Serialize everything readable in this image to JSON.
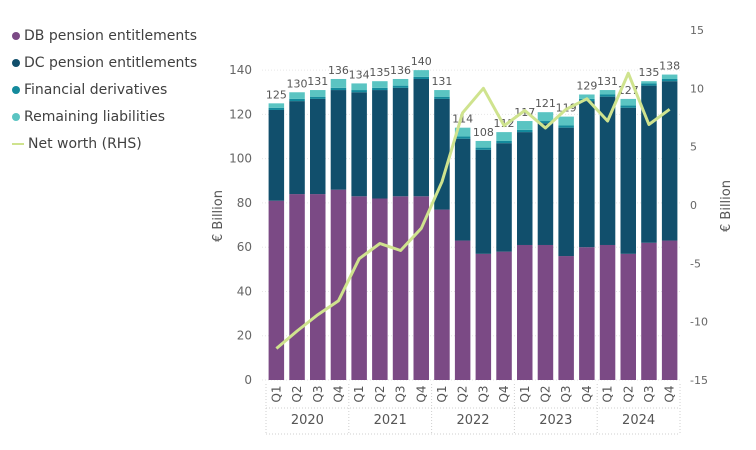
{
  "chart_data": {
    "type": "bar",
    "stacked": true,
    "title": "",
    "ylabel": "€ Billion",
    "y2label": "€ Billion",
    "ylim": [
      0,
      150
    ],
    "y2lim": [
      -15,
      15
    ],
    "yticks": [
      0,
      20,
      40,
      60,
      80,
      100,
      120,
      140
    ],
    "y2ticks": [
      -15,
      -10,
      -5,
      0,
      5,
      10,
      15
    ],
    "quarters": [
      "Q1",
      "Q2",
      "Q3",
      "Q4",
      "Q1",
      "Q2",
      "Q3",
      "Q4",
      "Q1",
      "Q2",
      "Q3",
      "Q4",
      "Q1",
      "Q2",
      "Q3",
      "Q4",
      "Q1",
      "Q2",
      "Q3",
      "Q4"
    ],
    "years": [
      "2020",
      "2021",
      "2022",
      "2023",
      "2024"
    ],
    "totals": [
      125,
      130,
      131,
      136,
      134,
      135,
      136,
      140,
      131,
      114,
      108,
      112,
      117,
      121,
      119,
      129,
      131,
      127,
      135,
      138
    ],
    "series": [
      {
        "name": "DB pension entitlements",
        "color": "#7b4a85",
        "values": [
          81,
          84,
          84,
          86,
          83,
          82,
          83,
          83,
          77,
          63,
          57,
          58,
          61,
          61,
          56,
          60,
          61,
          57,
          62,
          63
        ]
      },
      {
        "name": "DC pension entitlements",
        "color": "#114f6c",
        "values": [
          41,
          42,
          43,
          45,
          47,
          49,
          49,
          53,
          50,
          46,
          47,
          49,
          51,
          55,
          58,
          66,
          67,
          66,
          71,
          72
        ]
      },
      {
        "name": "Financial derivatives",
        "color": "#148a9c",
        "values": [
          1,
          1,
          1,
          1,
          1,
          1,
          1,
          1,
          1,
          1,
          1,
          1,
          1,
          1,
          1,
          1,
          1,
          1,
          1,
          1
        ]
      },
      {
        "name": "Remaining liabilities",
        "color": "#5ac4c2",
        "values": [
          2,
          3,
          3,
          4,
          3,
          3,
          3,
          3,
          3,
          4,
          3,
          4,
          4,
          4,
          4,
          2,
          2,
          3,
          1,
          2
        ]
      }
    ],
    "line_series": {
      "name": "Net worth (RHS)",
      "color": "#cfe38e",
      "values": [
        -12.3,
        -10.8,
        -9.4,
        -8.2,
        -4.6,
        -3.3,
        -3.9,
        -2.0,
        2.0,
        7.9,
        10.0,
        6.8,
        8.1,
        6.6,
        8.2,
        9.1,
        7.2,
        11.3,
        6.9,
        8.2
      ]
    }
  }
}
